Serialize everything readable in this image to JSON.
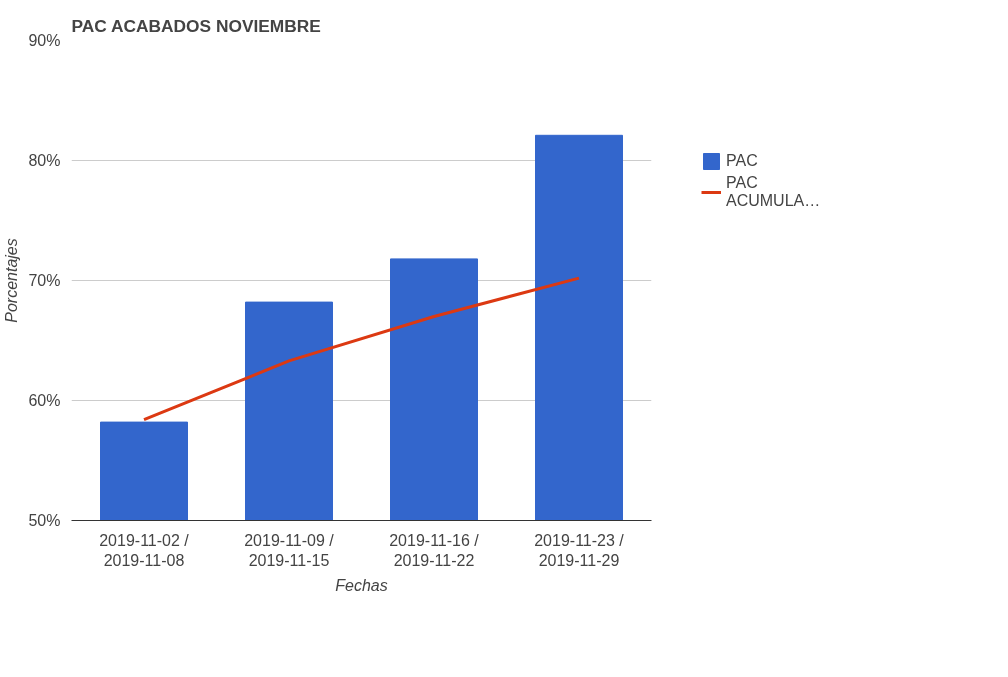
{
  "chart_data": {
    "type": "bar",
    "title": "PAC ACABADOS NOVIEMBRE",
    "xlabel": "Fechas",
    "ylabel": "Porcentajes",
    "categories": [
      "2019-11-02 / 2019-11-08",
      "2019-11-09 / 2019-11-15",
      "2019-11-16 / 2019-11-22",
      "2019-11-23 / 2019-11-29"
    ],
    "series": [
      {
        "name": "PAC",
        "color": "#3366cc",
        "values": [
          58.2,
          68.2,
          71.8,
          82.1
        ]
      },
      {
        "name": "PAC ACUMULA…",
        "type": "line",
        "color": "#dc3912",
        "values": [
          58.4,
          63.3,
          67.0,
          70.2
        ]
      }
    ],
    "ylim": [
      50,
      90
    ],
    "yticks": [
      {
        "value": 50,
        "label": "50%"
      },
      {
        "value": 60,
        "label": "60%"
      },
      {
        "value": 70,
        "label": "70%"
      },
      {
        "value": 80,
        "label": "80%"
      },
      {
        "value": 90,
        "label": "90%"
      }
    ],
    "grid": "y",
    "legend": "right"
  }
}
